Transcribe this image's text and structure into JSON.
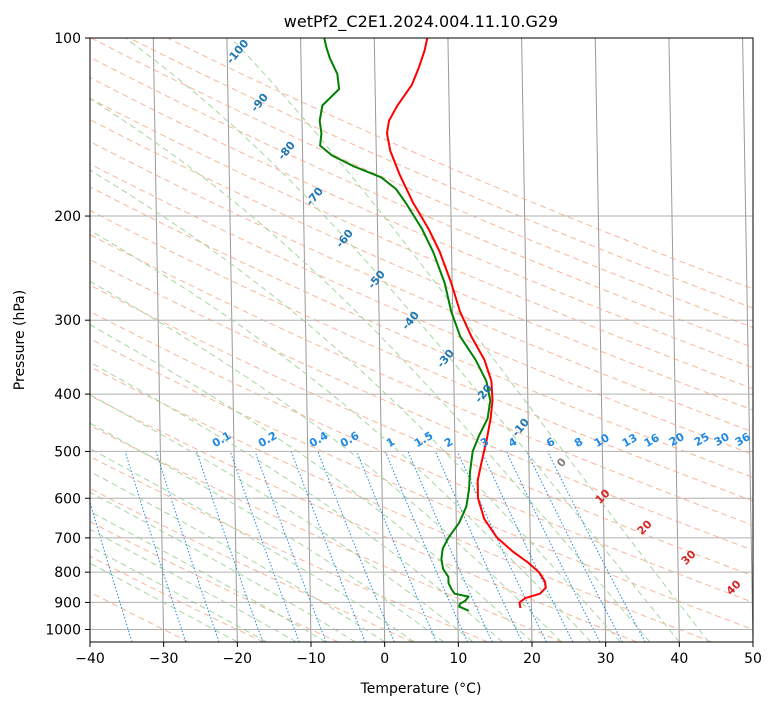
{
  "chart_data": {
    "type": "skew-t",
    "title": "wetPf2_C2E1.2024.004.11.10.G29",
    "xlabel": "Temperature (°C)",
    "ylabel": "Pressure (hPa)",
    "xlim": [
      -40,
      50
    ],
    "ylim": [
      1050,
      100
    ],
    "x_ticks": [
      -40,
      -30,
      -20,
      -10,
      0,
      10,
      20,
      30,
      40,
      50
    ],
    "y_ticks": [
      100,
      200,
      300,
      400,
      500,
      600,
      700,
      800,
      900,
      1000
    ],
    "grid": true,
    "series": [
      {
        "name": "Temperature",
        "color": "#ff0000",
        "points": [
          [
            920,
            18.5
          ],
          [
            900,
            18.4
          ],
          [
            885,
            19.2
          ],
          [
            870,
            21.2
          ],
          [
            850,
            22.0
          ],
          [
            830,
            21.9
          ],
          [
            800,
            21.1
          ],
          [
            770,
            19.6
          ],
          [
            740,
            17.7
          ],
          [
            700,
            15.5
          ],
          [
            650,
            13.8
          ],
          [
            600,
            13.0
          ],
          [
            560,
            13.0
          ],
          [
            520,
            13.6
          ],
          [
            480,
            14.3
          ],
          [
            440,
            14.9
          ],
          [
            410,
            15.2
          ],
          [
            380,
            15.1
          ],
          [
            350,
            14.2
          ],
          [
            320,
            12.5
          ],
          [
            290,
            11.0
          ],
          [
            260,
            9.9
          ],
          [
            230,
            8.4
          ],
          [
            210,
            6.9
          ],
          [
            190,
            4.9
          ],
          [
            170,
            3.1
          ],
          [
            155,
            1.9
          ],
          [
            145,
            1.5
          ],
          [
            138,
            1.8
          ],
          [
            130,
            3.0
          ],
          [
            120,
            5.0
          ],
          [
            112,
            6.0
          ],
          [
            105,
            6.8
          ],
          [
            100,
            7.2
          ]
        ]
      },
      {
        "name": "Dewpoint",
        "color": "#008000",
        "points": [
          [
            930,
            11.5
          ],
          [
            915,
            10.2
          ],
          [
            905,
            10.3
          ],
          [
            895,
            11.0
          ],
          [
            880,
            11.5
          ],
          [
            870,
            9.6
          ],
          [
            855,
            9.2
          ],
          [
            835,
            8.8
          ],
          [
            815,
            8.8
          ],
          [
            790,
            8.1
          ],
          [
            760,
            7.9
          ],
          [
            730,
            8.1
          ],
          [
            700,
            8.9
          ],
          [
            660,
            10.4
          ],
          [
            620,
            11.4
          ],
          [
            580,
            11.8
          ],
          [
            540,
            12.0
          ],
          [
            500,
            12.4
          ],
          [
            470,
            13.3
          ],
          [
            440,
            14.5
          ],
          [
            410,
            14.9
          ],
          [
            380,
            14.4
          ],
          [
            350,
            13.0
          ],
          [
            320,
            11.0
          ],
          [
            290,
            9.8
          ],
          [
            260,
            9.0
          ],
          [
            230,
            7.5
          ],
          [
            210,
            6.0
          ],
          [
            190,
            3.9
          ],
          [
            180,
            2.6
          ],
          [
            172,
            0.6
          ],
          [
            165,
            -3.0
          ],
          [
            158,
            -6.0
          ],
          [
            152,
            -7.6
          ],
          [
            145,
            -7.4
          ],
          [
            138,
            -7.6
          ],
          [
            130,
            -7.2
          ],
          [
            122,
            -4.9
          ],
          [
            115,
            -5.1
          ],
          [
            108,
            -6.1
          ],
          [
            104,
            -6.5
          ],
          [
            100,
            -6.8
          ]
        ]
      }
    ],
    "background_lines": {
      "isotherm_step": 10,
      "dry_adiabat_labels": [
        "-100",
        "-90",
        "-80",
        "-70",
        "-60",
        "-50",
        "-40",
        "-30",
        "-20",
        "-10"
      ],
      "moist_adiabat_labels": [
        "0",
        "10",
        "20",
        "30",
        "40"
      ],
      "mixing_ratio_labels": [
        "0.1",
        "0.2",
        "0.4",
        "0.6",
        "1",
        "1.5",
        "2",
        "3",
        "4",
        "6",
        "8",
        "10",
        "13",
        "16",
        "20",
        "25",
        "30",
        "36"
      ],
      "mixing_ratio_values": [
        0.1,
        0.2,
        0.4,
        0.6,
        1,
        1.5,
        2,
        3,
        4,
        6,
        8,
        10,
        13,
        16,
        20,
        25,
        30,
        36
      ]
    },
    "colors": {
      "isotherm": "#9a9a9a",
      "dry_adiabat": "#f4a582",
      "moist_adiabat": "#a6d6a0",
      "mixing_ratio": "#1e88e5",
      "dry_label": "#1f77b4",
      "moist_label": "#d62728",
      "mixing_label": "#1e88e5",
      "zero_label": "#808080"
    }
  }
}
